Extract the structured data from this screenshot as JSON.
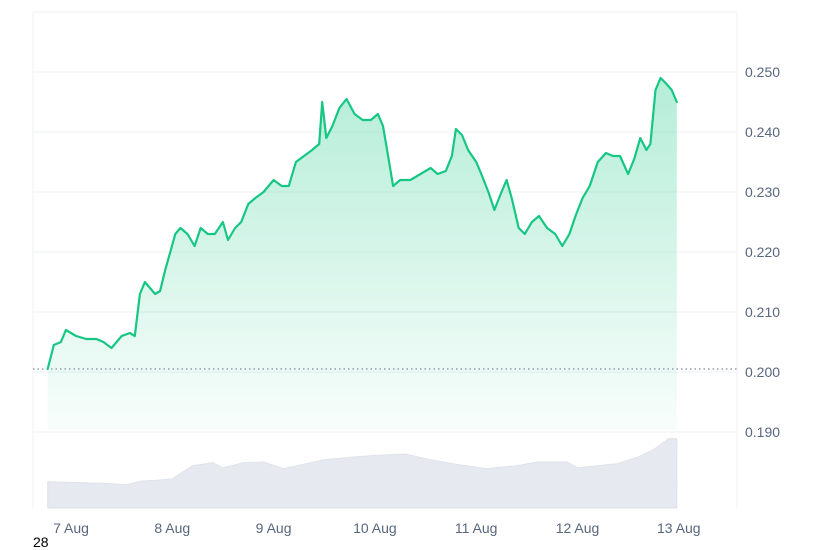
{
  "chart_data": {
    "type": "area",
    "x_label": "",
    "y_label": "",
    "ylim": [
      0.18,
      0.255
    ],
    "y_ticks": [
      0.19,
      0.2,
      0.21,
      0.22,
      0.23,
      0.24,
      0.25
    ],
    "y_tick_labels": [
      "0.190",
      "0.200",
      "0.210",
      "0.220",
      "0.230",
      "0.240",
      "0.250"
    ],
    "x_ticks": [
      "7 Aug",
      "8 Aug",
      "9 Aug",
      "10 Aug",
      "11 Aug",
      "12 Aug",
      "13 Aug"
    ],
    "baseline_value": 0.2005,
    "grid": true,
    "colors": {
      "line": "#16c784",
      "fill": "#16c784",
      "volume": "#e6e9ef",
      "grid": "#eff2f5",
      "baseline": "#808a9d"
    },
    "series": [
      {
        "values": [
          [
            -0.23,
            0.2005
          ],
          [
            -0.17,
            0.2045
          ],
          [
            -0.1,
            0.205
          ],
          [
            -0.05,
            0.207
          ],
          [
            0.05,
            0.206
          ],
          [
            0.15,
            0.2055
          ],
          [
            0.25,
            0.2055
          ],
          [
            0.32,
            0.205
          ],
          [
            0.4,
            0.204
          ],
          [
            0.5,
            0.206
          ],
          [
            0.58,
            0.2065
          ],
          [
            0.63,
            0.206
          ],
          [
            0.68,
            0.213
          ],
          [
            0.73,
            0.215
          ],
          [
            0.78,
            0.214
          ],
          [
            0.83,
            0.213
          ],
          [
            0.88,
            0.2135
          ],
          [
            0.93,
            0.217
          ],
          [
            0.98,
            0.22
          ],
          [
            1.03,
            0.223
          ],
          [
            1.08,
            0.224
          ],
          [
            1.15,
            0.223
          ],
          [
            1.22,
            0.221
          ],
          [
            1.28,
            0.224
          ],
          [
            1.35,
            0.223
          ],
          [
            1.42,
            0.223
          ],
          [
            1.5,
            0.225
          ],
          [
            1.55,
            0.222
          ],
          [
            1.62,
            0.224
          ],
          [
            1.68,
            0.225
          ],
          [
            1.75,
            0.228
          ],
          [
            1.82,
            0.229
          ],
          [
            1.9,
            0.23
          ],
          [
            2.0,
            0.232
          ],
          [
            2.08,
            0.231
          ],
          [
            2.15,
            0.231
          ],
          [
            2.22,
            0.235
          ],
          [
            2.3,
            0.236
          ],
          [
            2.38,
            0.237
          ],
          [
            2.45,
            0.238
          ],
          [
            2.48,
            0.245
          ],
          [
            2.52,
            0.239
          ],
          [
            2.58,
            0.241
          ],
          [
            2.65,
            0.244
          ],
          [
            2.72,
            0.2455
          ],
          [
            2.8,
            0.243
          ],
          [
            2.88,
            0.242
          ],
          [
            2.96,
            0.242
          ],
          [
            3.03,
            0.243
          ],
          [
            3.08,
            0.241
          ],
          [
            3.13,
            0.236
          ],
          [
            3.18,
            0.231
          ],
          [
            3.25,
            0.232
          ],
          [
            3.35,
            0.232
          ],
          [
            3.45,
            0.233
          ],
          [
            3.55,
            0.234
          ],
          [
            3.62,
            0.233
          ],
          [
            3.7,
            0.2335
          ],
          [
            3.76,
            0.236
          ],
          [
            3.8,
            0.2405
          ],
          [
            3.86,
            0.2395
          ],
          [
            3.92,
            0.237
          ],
          [
            4.0,
            0.235
          ],
          [
            4.05,
            0.233
          ],
          [
            4.12,
            0.23
          ],
          [
            4.18,
            0.227
          ],
          [
            4.25,
            0.23
          ],
          [
            4.3,
            0.232
          ],
          [
            4.35,
            0.229
          ],
          [
            4.42,
            0.224
          ],
          [
            4.48,
            0.223
          ],
          [
            4.55,
            0.225
          ],
          [
            4.62,
            0.226
          ],
          [
            4.7,
            0.224
          ],
          [
            4.78,
            0.223
          ],
          [
            4.85,
            0.221
          ],
          [
            4.92,
            0.223
          ],
          [
            4.98,
            0.226
          ],
          [
            5.05,
            0.229
          ],
          [
            5.12,
            0.231
          ],
          [
            5.2,
            0.235
          ],
          [
            5.28,
            0.2365
          ],
          [
            5.35,
            0.236
          ],
          [
            5.42,
            0.236
          ],
          [
            5.5,
            0.233
          ],
          [
            5.56,
            0.2355
          ],
          [
            5.62,
            0.239
          ],
          [
            5.68,
            0.237
          ],
          [
            5.72,
            0.238
          ],
          [
            5.77,
            0.247
          ],
          [
            5.82,
            0.249
          ],
          [
            5.88,
            0.248
          ],
          [
            5.93,
            0.247
          ],
          [
            5.98,
            0.245
          ]
        ]
      }
    ],
    "volume": [
      [
        -0.23,
        0.36
      ],
      [
        0.0,
        0.35
      ],
      [
        0.3,
        0.34
      ],
      [
        0.55,
        0.32
      ],
      [
        0.7,
        0.37
      ],
      [
        0.85,
        0.38
      ],
      [
        1.0,
        0.4
      ],
      [
        1.2,
        0.58
      ],
      [
        1.4,
        0.62
      ],
      [
        1.5,
        0.55
      ],
      [
        1.7,
        0.62
      ],
      [
        1.9,
        0.63
      ],
      [
        2.1,
        0.54
      ],
      [
        2.3,
        0.6
      ],
      [
        2.5,
        0.66
      ],
      [
        2.8,
        0.7
      ],
      [
        3.0,
        0.72
      ],
      [
        3.3,
        0.74
      ],
      [
        3.55,
        0.66
      ],
      [
        3.8,
        0.6
      ],
      [
        4.1,
        0.54
      ],
      [
        4.4,
        0.58
      ],
      [
        4.6,
        0.63
      ],
      [
        4.9,
        0.63
      ],
      [
        5.0,
        0.55
      ],
      [
        5.2,
        0.58
      ],
      [
        5.4,
        0.61
      ],
      [
        5.6,
        0.7
      ],
      [
        5.75,
        0.8
      ],
      [
        5.9,
        0.95
      ],
      [
        5.98,
        0.95
      ]
    ],
    "footer_text": "28"
  }
}
